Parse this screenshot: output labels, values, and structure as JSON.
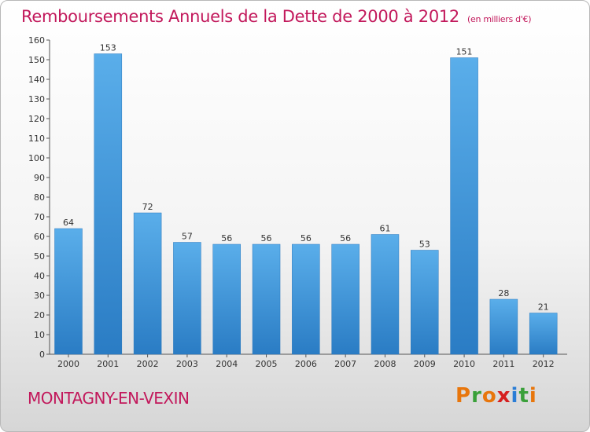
{
  "title": "Remboursements Annuels de la Dette de 2000 à 2012",
  "unit": "(en milliers d'€)",
  "city": "MONTAGNY-EN-VEXIN",
  "logo": {
    "letters": [
      "P",
      "r",
      "o",
      "x",
      "i",
      "t",
      "i"
    ],
    "colors": [
      "#e8760c",
      "#3aa03a",
      "#e8760c",
      "#d62020",
      "#2a7dd6",
      "#3aa03a",
      "#e8760c"
    ]
  },
  "chart_data": {
    "type": "bar",
    "categories": [
      "2000",
      "2001",
      "2002",
      "2003",
      "2004",
      "2005",
      "2006",
      "2007",
      "2008",
      "2009",
      "2010",
      "2011",
      "2012"
    ],
    "values": [
      64,
      153,
      72,
      57,
      56,
      56,
      56,
      56,
      61,
      53,
      151,
      28,
      21
    ],
    "ylim": [
      0,
      160
    ],
    "yticks": [
      0,
      10,
      20,
      30,
      40,
      50,
      60,
      70,
      80,
      90,
      100,
      110,
      120,
      130,
      140,
      150,
      160
    ],
    "grid": false,
    "legend": "none",
    "bar_color": "#4a9fdf",
    "title": "Remboursements Annuels de la Dette de 2000 à 2012",
    "xlabel": "",
    "ylabel": ""
  }
}
